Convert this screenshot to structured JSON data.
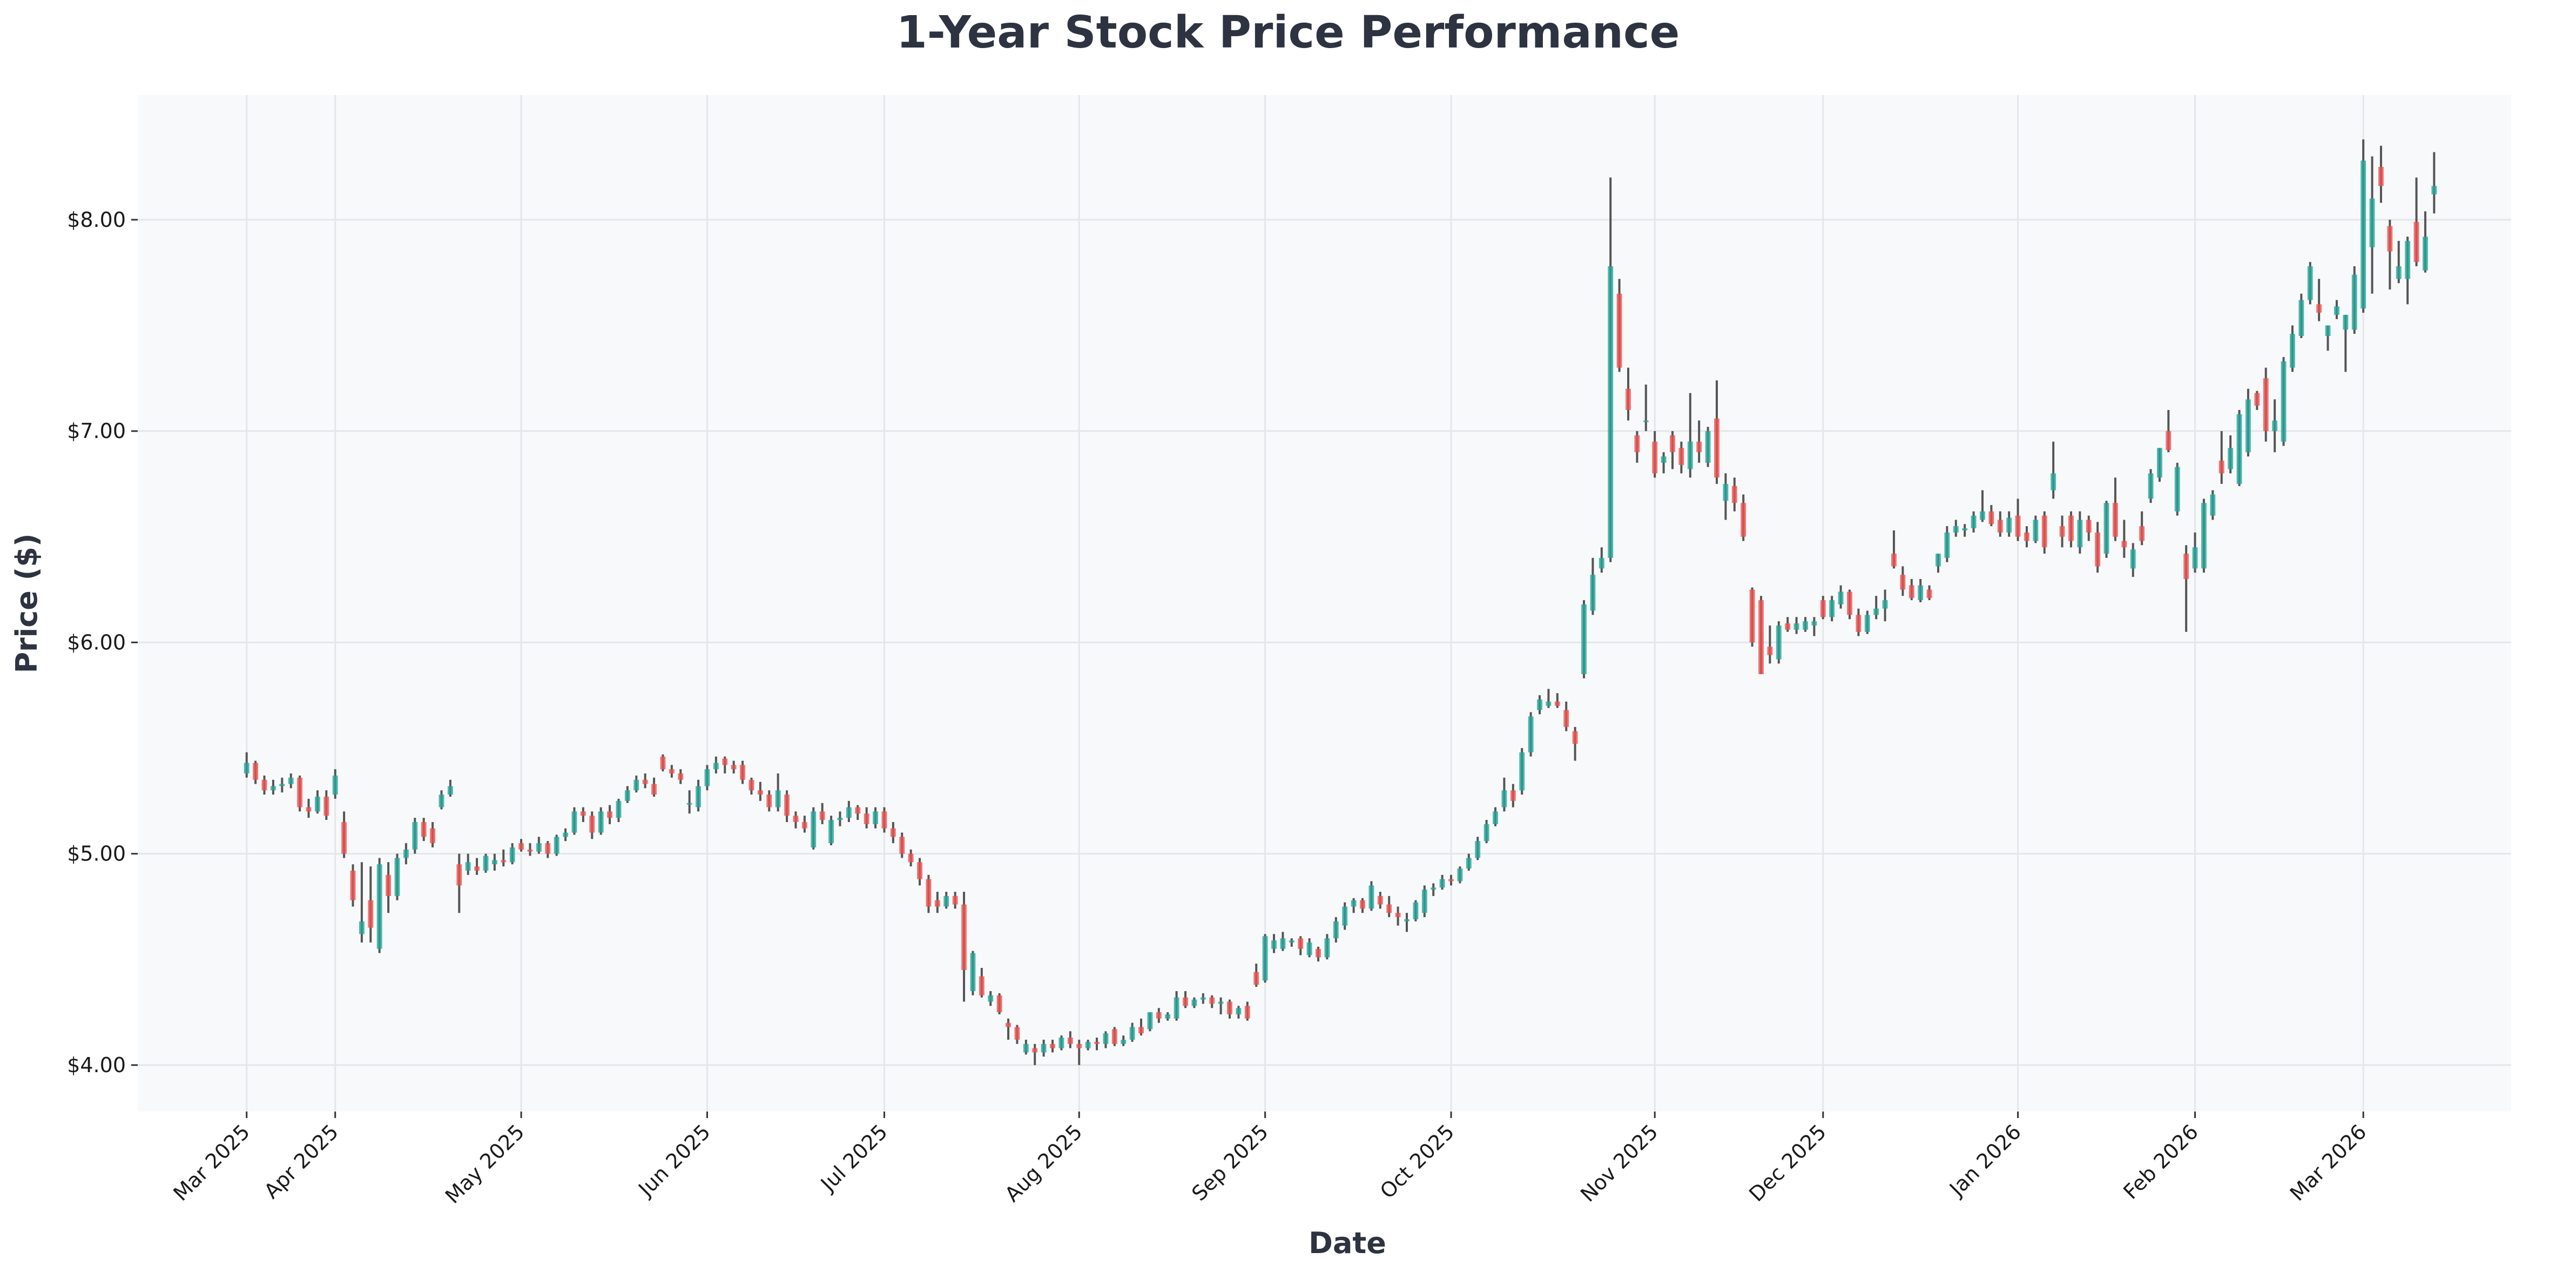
{
  "chart_data": {
    "type": "candlestick",
    "title": "1-Year Stock Price Performance",
    "xlabel": "Date",
    "ylabel": "Price ($)",
    "ylim": [
      3.78,
      8.59
    ],
    "xlim": [
      -12.3,
      255.7
    ],
    "grid": true,
    "y_ticks": [
      {
        "value": 4,
        "label": "$4.00"
      },
      {
        "value": 5,
        "label": "$5.00"
      },
      {
        "value": 6,
        "label": "$6.00"
      },
      {
        "value": 7,
        "label": "$7.00"
      },
      {
        "value": 8,
        "label": "$8.00"
      }
    ],
    "x_ticks": [
      {
        "index": 0,
        "label": "Mar 2025"
      },
      {
        "index": 10,
        "label": "Apr 2025"
      },
      {
        "index": 31,
        "label": "May 2025"
      },
      {
        "index": 52,
        "label": "Jun 2025"
      },
      {
        "index": 72,
        "label": "Jul 2025"
      },
      {
        "index": 94,
        "label": "Aug 2025"
      },
      {
        "index": 115,
        "label": "Sep 2025"
      },
      {
        "index": 136,
        "label": "Oct 2025"
      },
      {
        "index": 159,
        "label": "Nov 2025"
      },
      {
        "index": 178,
        "label": "Dec 2025"
      },
      {
        "index": 200,
        "label": "Jan 2026"
      },
      {
        "index": 220,
        "label": "Feb 2026"
      },
      {
        "index": 239,
        "label": "Mar 2026"
      }
    ],
    "colors": {
      "up": "#26a69a",
      "down": "#ef5350",
      "wick": "#555555",
      "background": "#f8f9fb",
      "grid": "#e4e6ea",
      "title": "#2d3340"
    },
    "candle_fields": [
      "open",
      "high",
      "low",
      "close"
    ],
    "candles": [
      [
        5.38,
        5.48,
        5.36,
        5.43
      ],
      [
        5.43,
        5.44,
        5.33,
        5.35
      ],
      [
        5.35,
        5.37,
        5.28,
        5.3
      ],
      [
        5.3,
        5.35,
        5.28,
        5.32
      ],
      [
        5.32,
        5.36,
        5.29,
        5.33
      ],
      [
        5.33,
        5.38,
        5.31,
        5.36
      ],
      [
        5.36,
        5.37,
        5.2,
        5.22
      ],
      [
        5.22,
        5.26,
        5.17,
        5.2
      ],
      [
        5.2,
        5.3,
        5.19,
        5.27
      ],
      [
        5.27,
        5.3,
        5.16,
        5.18
      ],
      [
        5.28,
        5.4,
        5.26,
        5.37
      ],
      [
        5.15,
        5.2,
        4.98,
        5.0
      ],
      [
        4.92,
        4.95,
        4.75,
        4.78
      ],
      [
        4.62,
        4.96,
        4.58,
        4.68
      ],
      [
        4.78,
        4.94,
        4.58,
        4.65
      ],
      [
        4.55,
        4.98,
        4.53,
        4.95
      ],
      [
        4.9,
        4.96,
        4.72,
        4.8
      ],
      [
        4.8,
        5.0,
        4.78,
        4.98
      ],
      [
        4.98,
        5.05,
        4.95,
        5.02
      ],
      [
        5.02,
        5.17,
        5.0,
        5.15
      ],
      [
        5.15,
        5.17,
        5.06,
        5.08
      ],
      [
        5.12,
        5.15,
        5.03,
        5.05
      ],
      [
        5.22,
        5.3,
        5.21,
        5.28
      ],
      [
        5.28,
        5.35,
        5.27,
        5.32
      ],
      [
        4.95,
        5.0,
        4.72,
        4.85
      ],
      [
        4.92,
        5.0,
        4.9,
        4.96
      ],
      [
        4.94,
        4.98,
        4.9,
        4.92
      ],
      [
        4.92,
        5.0,
        4.91,
        4.99
      ],
      [
        4.95,
        5.0,
        4.92,
        4.97
      ],
      [
        4.97,
        5.02,
        4.94,
        4.96
      ],
      [
        4.96,
        5.05,
        4.95,
        5.03
      ],
      [
        5.05,
        5.07,
        5.01,
        5.02
      ],
      [
        5.02,
        5.05,
        4.99,
        5.01
      ],
      [
        5.01,
        5.08,
        5.0,
        5.05
      ],
      [
        5.05,
        5.06,
        4.98,
        5.0
      ],
      [
        5.0,
        5.09,
        4.99,
        5.08
      ],
      [
        5.08,
        5.12,
        5.06,
        5.1
      ],
      [
        5.1,
        5.22,
        5.09,
        5.2
      ],
      [
        5.2,
        5.22,
        5.15,
        5.18
      ],
      [
        5.18,
        5.2,
        5.07,
        5.1
      ],
      [
        5.1,
        5.22,
        5.09,
        5.2
      ],
      [
        5.2,
        5.23,
        5.14,
        5.17
      ],
      [
        5.17,
        5.26,
        5.15,
        5.25
      ],
      [
        5.25,
        5.32,
        5.24,
        5.3
      ],
      [
        5.3,
        5.37,
        5.29,
        5.35
      ],
      [
        5.35,
        5.38,
        5.31,
        5.33
      ],
      [
        5.33,
        5.36,
        5.27,
        5.28
      ],
      [
        5.46,
        5.47,
        5.39,
        5.4
      ],
      [
        5.4,
        5.42,
        5.36,
        5.38
      ],
      [
        5.38,
        5.4,
        5.33,
        5.35
      ],
      [
        5.24,
        5.3,
        5.19,
        5.24
      ],
      [
        5.22,
        5.35,
        5.2,
        5.32
      ],
      [
        5.32,
        5.42,
        5.3,
        5.4
      ],
      [
        5.4,
        5.46,
        5.38,
        5.43
      ],
      [
        5.45,
        5.46,
        5.38,
        5.42
      ],
      [
        5.42,
        5.44,
        5.38,
        5.4
      ],
      [
        5.42,
        5.44,
        5.33,
        5.35
      ],
      [
        5.35,
        5.36,
        5.28,
        5.3
      ],
      [
        5.3,
        5.34,
        5.25,
        5.28
      ],
      [
        5.28,
        5.3,
        5.2,
        5.22
      ],
      [
        5.22,
        5.38,
        5.2,
        5.3
      ],
      [
        5.28,
        5.3,
        5.15,
        5.18
      ],
      [
        5.18,
        5.2,
        5.12,
        5.15
      ],
      [
        5.15,
        5.18,
        5.1,
        5.12
      ],
      [
        5.03,
        5.22,
        5.02,
        5.2
      ],
      [
        5.2,
        5.24,
        5.14,
        5.16
      ],
      [
        5.05,
        5.18,
        5.04,
        5.16
      ],
      [
        5.16,
        5.2,
        5.13,
        5.17
      ],
      [
        5.17,
        5.25,
        5.15,
        5.22
      ],
      [
        5.22,
        5.23,
        5.16,
        5.19
      ],
      [
        5.19,
        5.22,
        5.12,
        5.14
      ],
      [
        5.14,
        5.22,
        5.12,
        5.2
      ],
      [
        5.2,
        5.22,
        5.1,
        5.12
      ],
      [
        5.12,
        5.15,
        5.05,
        5.08
      ],
      [
        5.08,
        5.1,
        4.98,
        5.0
      ],
      [
        5.0,
        5.02,
        4.94,
        4.96
      ],
      [
        4.96,
        4.98,
        4.85,
        4.88
      ],
      [
        4.88,
        4.9,
        4.72,
        4.75
      ],
      [
        4.78,
        4.82,
        4.72,
        4.75
      ],
      [
        4.75,
        4.82,
        4.74,
        4.8
      ],
      [
        4.8,
        4.82,
        4.74,
        4.76
      ],
      [
        4.76,
        4.82,
        4.3,
        4.45
      ],
      [
        4.35,
        4.54,
        4.33,
        4.53
      ],
      [
        4.42,
        4.46,
        4.32,
        4.33
      ],
      [
        4.3,
        4.35,
        4.28,
        4.33
      ],
      [
        4.33,
        4.34,
        4.24,
        4.25
      ],
      [
        4.2,
        4.22,
        4.12,
        4.18
      ],
      [
        4.18,
        4.19,
        4.1,
        4.12
      ],
      [
        4.06,
        4.12,
        4.05,
        4.1
      ],
      [
        4.08,
        4.1,
        4.0,
        4.06
      ],
      [
        4.06,
        4.12,
        4.04,
        4.1
      ],
      [
        4.1,
        4.12,
        4.06,
        4.08
      ],
      [
        4.08,
        4.14,
        4.07,
        4.13
      ],
      [
        4.13,
        4.16,
        4.08,
        4.1
      ],
      [
        4.1,
        4.12,
        4.0,
        4.08
      ],
      [
        4.08,
        4.12,
        4.07,
        4.11
      ],
      [
        4.11,
        4.13,
        4.07,
        4.1
      ],
      [
        4.1,
        4.16,
        4.08,
        4.15
      ],
      [
        4.17,
        4.18,
        4.09,
        4.1
      ],
      [
        4.1,
        4.14,
        4.09,
        4.12
      ],
      [
        4.12,
        4.2,
        4.11,
        4.18
      ],
      [
        4.18,
        4.22,
        4.14,
        4.15
      ],
      [
        4.17,
        4.25,
        4.16,
        4.25
      ],
      [
        4.25,
        4.27,
        4.2,
        4.22
      ],
      [
        4.22,
        4.25,
        4.21,
        4.24
      ],
      [
        4.22,
        4.35,
        4.21,
        4.32
      ],
      [
        4.32,
        4.35,
        4.27,
        4.28
      ],
      [
        4.28,
        4.32,
        4.27,
        4.31
      ],
      [
        4.31,
        4.34,
        4.29,
        4.32
      ],
      [
        4.32,
        4.33,
        4.27,
        4.29
      ],
      [
        4.29,
        4.32,
        4.24,
        4.3
      ],
      [
        4.3,
        4.31,
        4.22,
        4.24
      ],
      [
        4.24,
        4.28,
        4.22,
        4.27
      ],
      [
        4.28,
        4.3,
        4.21,
        4.22
      ],
      [
        4.44,
        4.48,
        4.37,
        4.38
      ],
      [
        4.4,
        4.62,
        4.39,
        4.61
      ],
      [
        4.55,
        4.62,
        4.53,
        4.59
      ],
      [
        4.55,
        4.63,
        4.54,
        4.6
      ],
      [
        4.58,
        4.6,
        4.56,
        4.59
      ],
      [
        4.6,
        4.61,
        4.52,
        4.55
      ],
      [
        4.52,
        4.6,
        4.51,
        4.58
      ],
      [
        4.55,
        4.56,
        4.49,
        4.51
      ],
      [
        4.51,
        4.62,
        4.5,
        4.6
      ],
      [
        4.6,
        4.7,
        4.58,
        4.68
      ],
      [
        4.66,
        4.77,
        4.64,
        4.75
      ],
      [
        4.75,
        4.79,
        4.72,
        4.78
      ],
      [
        4.78,
        4.79,
        4.72,
        4.74
      ],
      [
        4.74,
        4.87,
        4.73,
        4.85
      ],
      [
        4.8,
        4.82,
        4.74,
        4.76
      ],
      [
        4.76,
        4.8,
        4.7,
        4.72
      ],
      [
        4.72,
        4.75,
        4.66,
        4.7
      ],
      [
        4.68,
        4.72,
        4.63,
        4.69
      ],
      [
        4.69,
        4.78,
        4.68,
        4.77
      ],
      [
        4.72,
        4.85,
        4.7,
        4.83
      ],
      [
        4.83,
        4.86,
        4.8,
        4.84
      ],
      [
        4.84,
        4.9,
        4.83,
        4.88
      ],
      [
        4.88,
        4.9,
        4.85,
        4.87
      ],
      [
        4.87,
        4.94,
        4.86,
        4.93
      ],
      [
        4.93,
        5.0,
        4.92,
        4.98
      ],
      [
        4.98,
        5.08,
        4.97,
        5.06
      ],
      [
        5.06,
        5.16,
        5.05,
        5.14
      ],
      [
        5.14,
        5.22,
        5.13,
        5.2
      ],
      [
        5.22,
        5.36,
        5.2,
        5.3
      ],
      [
        5.3,
        5.33,
        5.22,
        5.25
      ],
      [
        5.3,
        5.5,
        5.28,
        5.48
      ],
      [
        5.48,
        5.67,
        5.46,
        5.65
      ],
      [
        5.68,
        5.75,
        5.66,
        5.73
      ],
      [
        5.7,
        5.78,
        5.69,
        5.72
      ],
      [
        5.72,
        5.76,
        5.69,
        5.7
      ],
      [
        5.68,
        5.72,
        5.58,
        5.6
      ],
      [
        5.58,
        5.6,
        5.44,
        5.52
      ],
      [
        5.85,
        6.2,
        5.83,
        6.18
      ],
      [
        6.15,
        6.4,
        6.13,
        6.32
      ],
      [
        6.35,
        6.45,
        6.33,
        6.4
      ],
      [
        6.4,
        8.2,
        6.38,
        7.78
      ],
      [
        7.65,
        7.72,
        7.28,
        7.3
      ],
      [
        7.2,
        7.3,
        7.05,
        7.1
      ],
      [
        6.98,
        7.0,
        6.85,
        6.9
      ],
      [
        7.05,
        7.22,
        7.0,
        7.05
      ],
      [
        6.95,
        7.0,
        6.78,
        6.8
      ],
      [
        6.85,
        6.9,
        6.8,
        6.88
      ],
      [
        6.98,
        7.0,
        6.82,
        6.9
      ],
      [
        6.92,
        6.95,
        6.8,
        6.84
      ],
      [
        6.82,
        7.18,
        6.78,
        6.95
      ],
      [
        6.95,
        7.05,
        6.85,
        6.9
      ],
      [
        6.85,
        7.02,
        6.83,
        7.0
      ],
      [
        7.06,
        7.24,
        6.75,
        6.78
      ],
      [
        6.67,
        6.8,
        6.58,
        6.75
      ],
      [
        6.74,
        6.78,
        6.62,
        6.66
      ],
      [
        6.66,
        6.7,
        6.48,
        6.5
      ],
      [
        6.25,
        6.26,
        5.98,
        6.0
      ],
      [
        6.2,
        6.22,
        5.85,
        5.85
      ],
      [
        5.98,
        6.08,
        5.9,
        5.94
      ],
      [
        5.92,
        6.1,
        5.9,
        6.08
      ],
      [
        6.09,
        6.12,
        6.05,
        6.06
      ],
      [
        6.06,
        6.12,
        6.04,
        6.09
      ],
      [
        6.06,
        6.12,
        6.05,
        6.1
      ],
      [
        6.08,
        6.12,
        6.03,
        6.1
      ],
      [
        6.2,
        6.22,
        6.11,
        6.12
      ],
      [
        6.12,
        6.22,
        6.1,
        6.2
      ],
      [
        6.18,
        6.27,
        6.16,
        6.24
      ],
      [
        6.24,
        6.25,
        6.11,
        6.13
      ],
      [
        6.13,
        6.16,
        6.03,
        6.05
      ],
      [
        6.05,
        6.15,
        6.04,
        6.13
      ],
      [
        6.13,
        6.22,
        6.11,
        6.16
      ],
      [
        6.16,
        6.25,
        6.1,
        6.2
      ],
      [
        6.42,
        6.53,
        6.35,
        6.36
      ],
      [
        6.32,
        6.36,
        6.22,
        6.25
      ],
      [
        6.27,
        6.3,
        6.2,
        6.21
      ],
      [
        6.2,
        6.3,
        6.19,
        6.27
      ],
      [
        6.25,
        6.27,
        6.2,
        6.21
      ],
      [
        6.36,
        6.42,
        6.33,
        6.42
      ],
      [
        6.4,
        6.55,
        6.38,
        6.52
      ],
      [
        6.52,
        6.58,
        6.5,
        6.55
      ],
      [
        6.53,
        6.56,
        6.5,
        6.54
      ],
      [
        6.54,
        6.62,
        6.52,
        6.6
      ],
      [
        6.58,
        6.72,
        6.57,
        6.62
      ],
      [
        6.62,
        6.65,
        6.55,
        6.56
      ],
      [
        6.58,
        6.62,
        6.5,
        6.52
      ],
      [
        6.52,
        6.62,
        6.5,
        6.59
      ],
      [
        6.6,
        6.68,
        6.48,
        6.5
      ],
      [
        6.52,
        6.55,
        6.45,
        6.48
      ],
      [
        6.48,
        6.6,
        6.47,
        6.58
      ],
      [
        6.6,
        6.62,
        6.42,
        6.45
      ],
      [
        6.72,
        6.95,
        6.68,
        6.8
      ],
      [
        6.55,
        6.6,
        6.45,
        6.5
      ],
      [
        6.6,
        6.62,
        6.45,
        6.48
      ],
      [
        6.45,
        6.62,
        6.42,
        6.58
      ],
      [
        6.58,
        6.6,
        6.48,
        6.52
      ],
      [
        6.52,
        6.57,
        6.33,
        6.36
      ],
      [
        6.42,
        6.67,
        6.4,
        6.66
      ],
      [
        6.66,
        6.78,
        6.48,
        6.5
      ],
      [
        6.48,
        6.58,
        6.4,
        6.45
      ],
      [
        6.35,
        6.47,
        6.31,
        6.44
      ],
      [
        6.55,
        6.62,
        6.46,
        6.48
      ],
      [
        6.68,
        6.82,
        6.66,
        6.8
      ],
      [
        6.78,
        6.92,
        6.76,
        6.92
      ],
      [
        7.0,
        7.1,
        6.9,
        6.91
      ],
      [
        6.62,
        6.85,
        6.6,
        6.83
      ],
      [
        6.42,
        6.46,
        6.05,
        6.3
      ],
      [
        6.35,
        6.52,
        6.33,
        6.45
      ],
      [
        6.35,
        6.68,
        6.33,
        6.66
      ],
      [
        6.6,
        6.72,
        6.58,
        6.7
      ],
      [
        6.86,
        7.0,
        6.75,
        6.8
      ],
      [
        6.82,
        6.98,
        6.8,
        6.92
      ],
      [
        6.75,
        7.1,
        6.74,
        7.08
      ],
      [
        6.9,
        7.2,
        6.88,
        7.15
      ],
      [
        7.18,
        7.19,
        7.1,
        7.12
      ],
      [
        7.25,
        7.3,
        6.95,
        7.0
      ],
      [
        7.0,
        7.15,
        6.9,
        7.05
      ],
      [
        6.95,
        7.35,
        6.93,
        7.33
      ],
      [
        7.3,
        7.5,
        7.28,
        7.46
      ],
      [
        7.45,
        7.65,
        7.44,
        7.62
      ],
      [
        7.62,
        7.8,
        7.6,
        7.78
      ],
      [
        7.6,
        7.72,
        7.52,
        7.56
      ],
      [
        7.45,
        7.5,
        7.38,
        7.5
      ],
      [
        7.55,
        7.62,
        7.53,
        7.59
      ],
      [
        7.48,
        7.55,
        7.28,
        7.55
      ],
      [
        7.48,
        7.78,
        7.46,
        7.74
      ],
      [
        7.58,
        8.38,
        7.56,
        8.28
      ],
      [
        7.87,
        8.3,
        7.65,
        8.1
      ],
      [
        8.25,
        8.35,
        8.08,
        8.16
      ],
      [
        7.97,
        8.0,
        7.67,
        7.85
      ],
      [
        7.72,
        7.9,
        7.7,
        7.78
      ],
      [
        7.72,
        7.92,
        7.6,
        7.9
      ],
      [
        7.99,
        8.2,
        7.78,
        7.8
      ],
      [
        7.76,
        8.04,
        7.75,
        7.92
      ],
      [
        8.12,
        8.32,
        8.03,
        8.16
      ]
    ]
  }
}
